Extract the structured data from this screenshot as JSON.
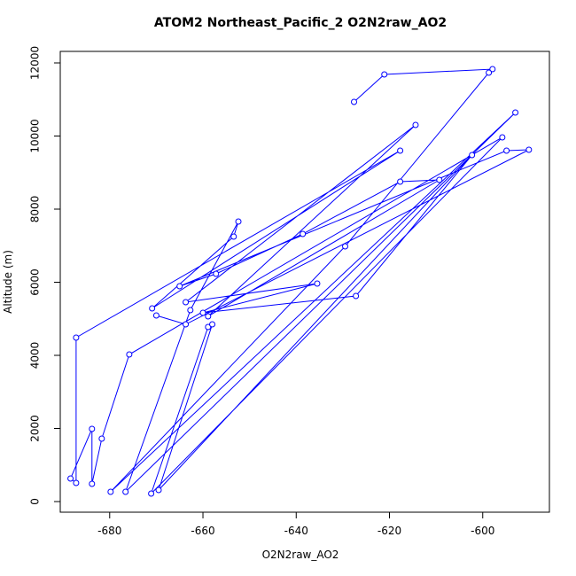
{
  "chart_data": {
    "type": "line",
    "title": "ATOM2 Northeast_Pacific_2 O2N2raw_AO2",
    "x_label": "O2N2raw_AO2",
    "y_label": "Altitude (m)",
    "x": [
      -627.6,
      -621.1,
      -597.9,
      -598.7,
      -629.5,
      -679.8,
      -593.0,
      -676.6,
      -662.7,
      -652.4,
      -653.4,
      -670.9,
      -617.7,
      -687.2,
      -687.2,
      -688.4,
      -683.8,
      -683.8,
      -681.7,
      -675.8,
      -595.8,
      -671.1,
      -658.9,
      -658.0,
      -669.5,
      -602.3,
      -627.2,
      -660.0,
      -635.5,
      -663.7,
      -614.4,
      -658.9,
      -609.3,
      -617.7,
      -638.6,
      -657.2,
      -665.0,
      -594.9,
      -590.1,
      -663.7,
      -670.0
    ],
    "series": [
      {
        "color": "#0000ff",
        "values": [
          10933,
          11685,
          11830,
          11733,
          6982,
          267,
          10642,
          267,
          5236,
          7661,
          7248,
          5285,
          9600,
          4485,
          509,
          630,
          1988,
          485,
          1721,
          4024,
          9964,
          218,
          4776,
          4848,
          315,
          9479,
          5624,
          5164,
          5964,
          5455,
          10303,
          5067,
          8800,
          8751,
          7321,
          6230,
          5891,
          9600,
          9624,
          4848,
          5091
        ]
      }
    ],
    "xlim": [
      -690.6,
      -585.7
    ],
    "ylim": [
      -291,
      12315
    ],
    "xticks": [
      -680,
      -660,
      -640,
      -620,
      -600
    ],
    "yticks": [
      0,
      2000,
      4000,
      6000,
      8000,
      10000,
      12000
    ]
  }
}
